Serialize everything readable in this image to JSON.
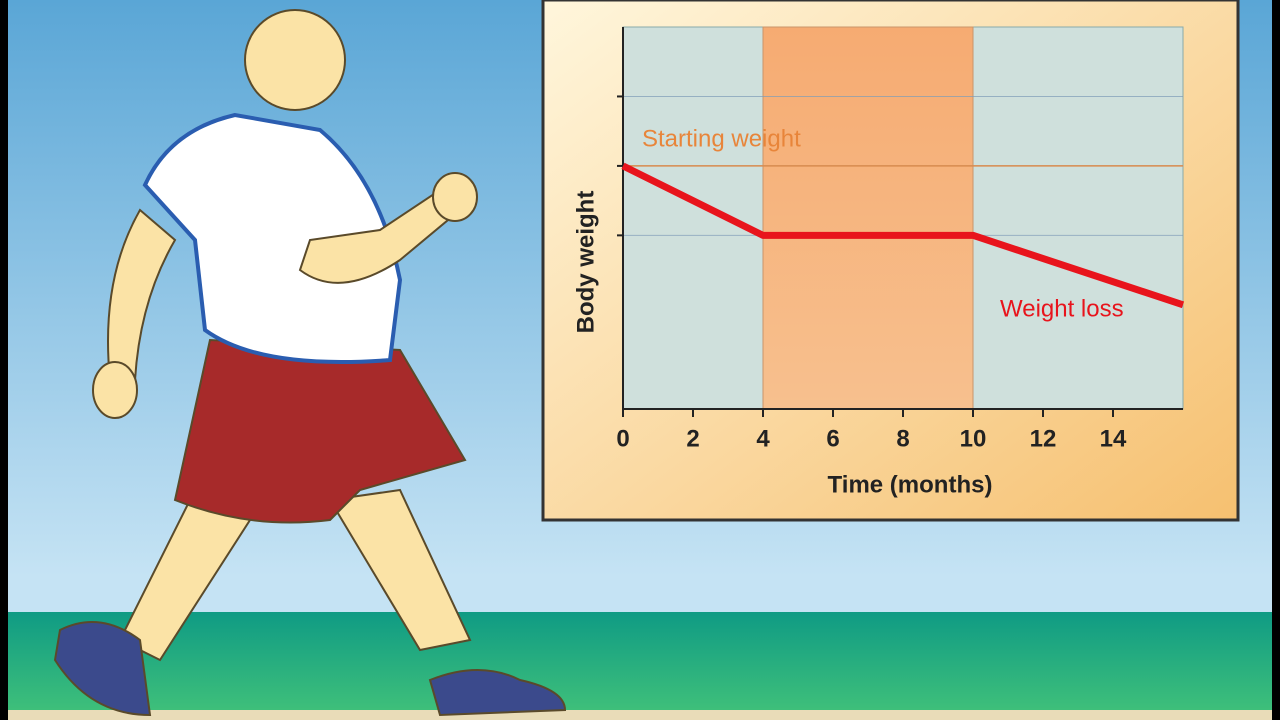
{
  "chart_data": {
    "type": "line",
    "x": [
      0,
      2,
      4,
      10,
      16
    ],
    "series": [
      {
        "color": "#e8141c",
        "values": [
          3.5,
          3.0,
          2.5,
          2.5,
          1.5
        ]
      }
    ],
    "xlim": [
      0,
      16
    ],
    "xticks": [
      0,
      2,
      4,
      6,
      8,
      10,
      12,
      14
    ],
    "ylim": [
      0,
      5.5
    ],
    "yticks": [
      2.5,
      3.5,
      4.5
    ],
    "xlabel": "Time (months)",
    "ylabel": "Body weight",
    "highlight_band": [
      4,
      10
    ],
    "reference_y": 3.5,
    "annotations": [
      "Starting weight",
      "Weight loss"
    ]
  }
}
